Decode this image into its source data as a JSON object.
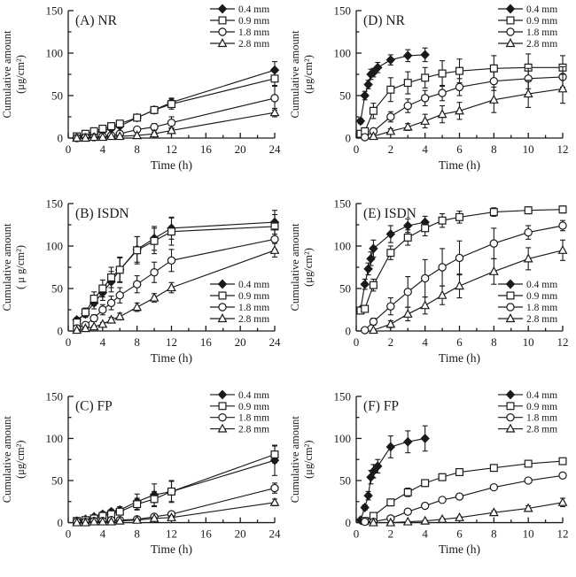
{
  "page": {
    "background": "#ffffff"
  },
  "colors": {
    "ink": "#1a1a1a",
    "marker_open_fill": "#ffffff"
  },
  "legend": {
    "entries": [
      {
        "label": "0.4 mm",
        "marker": "diamond",
        "filled": true
      },
      {
        "label": "0.9 mm",
        "marker": "square",
        "filled": false
      },
      {
        "label": "1.8 mm",
        "marker": "circle",
        "filled": false
      },
      {
        "label": "2.8 mm",
        "marker": "triangle",
        "filled": false
      }
    ]
  },
  "chart_data": [
    {
      "id": "A",
      "type": "line",
      "title": "(A) NR",
      "xlabel": "Time (h)",
      "ylabel": [
        "Cumulative amount",
        "(μg/cm²)"
      ],
      "xlim": [
        0,
        24
      ],
      "ylim": [
        0,
        150
      ],
      "xticks": [
        0,
        4,
        8,
        12,
        16,
        20,
        24
      ],
      "yticks": [
        0,
        50,
        100,
        150
      ],
      "grid": false,
      "legend_pos": "upper-right",
      "series": [
        {
          "name": "0.4 mm",
          "marker": "diamond",
          "filled": true,
          "x": [
            1,
            2,
            3,
            4,
            5,
            6,
            8,
            10,
            12,
            24
          ],
          "y": [
            1,
            2,
            5,
            8,
            11,
            14,
            24,
            33,
            42,
            80
          ],
          "e": [
            0,
            0,
            1,
            1,
            2,
            2,
            3,
            4,
            5,
            10
          ]
        },
        {
          "name": "0.9 mm",
          "marker": "square",
          "filled": false,
          "x": [
            1,
            2,
            3,
            4,
            5,
            6,
            8,
            10,
            12,
            24
          ],
          "y": [
            2,
            5,
            8,
            11,
            14,
            17,
            24,
            33,
            40,
            70
          ],
          "e": [
            1,
            1,
            2,
            2,
            2,
            3,
            3,
            4,
            6,
            8
          ]
        },
        {
          "name": "1.8 mm",
          "marker": "circle",
          "filled": false,
          "x": [
            1,
            2,
            3,
            4,
            5,
            6,
            8,
            10,
            12,
            24
          ],
          "y": [
            0,
            1,
            1,
            2,
            3,
            5,
            10,
            13,
            18,
            47
          ],
          "e": [
            0,
            0,
            0,
            1,
            1,
            2,
            3,
            4,
            7,
            14
          ]
        },
        {
          "name": "2.8 mm",
          "marker": "triangle",
          "filled": false,
          "x": [
            1,
            2,
            3,
            4,
            5,
            6,
            8,
            10,
            12,
            24
          ],
          "y": [
            0,
            0,
            1,
            1,
            2,
            2,
            3,
            5,
            9,
            30
          ],
          "e": [
            0,
            0,
            0,
            0,
            0,
            1,
            1,
            2,
            3,
            5
          ]
        }
      ]
    },
    {
      "id": "D",
      "type": "line",
      "title": "(D) NR",
      "xlabel": "Time (h)",
      "ylabel": [
        "Cumulative amount",
        "(μg/cm²)"
      ],
      "xlim": [
        0,
        12
      ],
      "ylim": [
        0,
        150
      ],
      "xticks": [
        0,
        2,
        4,
        6,
        8,
        10,
        12
      ],
      "yticks": [
        0,
        50,
        100,
        150
      ],
      "grid": false,
      "legend_pos": "upper-right",
      "series": [
        {
          "name": "0.4 mm",
          "marker": "diamond",
          "filled": true,
          "x": [
            0.25,
            0.5,
            0.7,
            0.85,
            1,
            1.25,
            2,
            3,
            4
          ],
          "y": [
            20,
            50,
            63,
            75,
            77,
            83,
            92,
            97,
            98
          ],
          "e": [
            3,
            5,
            5,
            6,
            5,
            6,
            6,
            7,
            8
          ]
        },
        {
          "name": "0.9 mm",
          "marker": "square",
          "filled": false,
          "x": [
            0.25,
            0.5,
            1,
            2,
            3,
            4,
            5,
            6,
            8,
            10,
            12
          ],
          "y": [
            5,
            8,
            32,
            57,
            65,
            71,
            76,
            79,
            82,
            83,
            83
          ],
          "e": [
            2,
            3,
            9,
            14,
            13,
            12,
            15,
            14,
            15,
            16,
            14
          ]
        },
        {
          "name": "1.8 mm",
          "marker": "circle",
          "filled": false,
          "x": [
            0.5,
            1,
            2,
            3,
            4,
            5,
            6,
            8,
            10,
            12
          ],
          "y": [
            1,
            8,
            25,
            38,
            47,
            53,
            60,
            67,
            70,
            72
          ],
          "e": [
            0,
            3,
            6,
            8,
            9,
            9,
            10,
            11,
            12,
            12
          ]
        },
        {
          "name": "2.8 mm",
          "marker": "triangle",
          "filled": false,
          "x": [
            1,
            2,
            3,
            4,
            5,
            6,
            8,
            10,
            12
          ],
          "y": [
            2,
            8,
            13,
            20,
            28,
            32,
            45,
            52,
            58
          ],
          "e": [
            1,
            3,
            4,
            8,
            10,
            10,
            15,
            16,
            17
          ]
        }
      ]
    },
    {
      "id": "B",
      "type": "line",
      "title": "(B) ISDN",
      "xlabel": "Time (h)",
      "ylabel": [
        "Cumulative amount",
        "( μ g/cm²)"
      ],
      "xlim": [
        0,
        24
      ],
      "ylim": [
        0,
        150
      ],
      "xticks": [
        0,
        4,
        8,
        12,
        16,
        20,
        24
      ],
      "yticks": [
        0,
        50,
        100,
        150
      ],
      "grid": false,
      "legend_pos": "middle-right",
      "series": [
        {
          "name": "0.4 mm",
          "marker": "diamond",
          "filled": true,
          "x": [
            1,
            2,
            3,
            4,
            5,
            6,
            8,
            10,
            12,
            24
          ],
          "y": [
            13,
            20,
            33,
            45,
            58,
            72,
            96,
            109,
            121,
            128
          ],
          "e": [
            3,
            4,
            7,
            9,
            12,
            15,
            15,
            14,
            13,
            14
          ]
        },
        {
          "name": "0.9 mm",
          "marker": "square",
          "filled": false,
          "x": [
            1,
            2,
            3,
            4,
            5,
            6,
            8,
            10,
            12,
            24
          ],
          "y": [
            10,
            22,
            38,
            50,
            63,
            72,
            95,
            106,
            117,
            123
          ],
          "e": [
            3,
            5,
            8,
            10,
            12,
            14,
            16,
            15,
            16,
            14
          ]
        },
        {
          "name": "1.8 mm",
          "marker": "circle",
          "filled": false,
          "x": [
            1,
            2,
            3,
            4,
            5,
            6,
            8,
            10,
            12,
            24
          ],
          "y": [
            3,
            7,
            15,
            25,
            33,
            42,
            55,
            69,
            83,
            108
          ],
          "e": [
            1,
            2,
            4,
            6,
            8,
            9,
            10,
            12,
            13,
            12
          ]
        },
        {
          "name": "2.8 mm",
          "marker": "triangle",
          "filled": false,
          "x": [
            1,
            2,
            3,
            4,
            5,
            6,
            8,
            10,
            12,
            24
          ],
          "y": [
            1,
            3,
            5,
            8,
            13,
            17,
            28,
            39,
            51,
            95
          ],
          "e": [
            0,
            1,
            1,
            2,
            3,
            4,
            5,
            5,
            6,
            8
          ]
        }
      ]
    },
    {
      "id": "E",
      "type": "line",
      "title": "(E) ISDN",
      "xlabel": "Time (h)",
      "ylabel": [
        "Cumulative amount",
        "(μg/cm²)"
      ],
      "xlim": [
        0,
        12
      ],
      "ylim": [
        0,
        150
      ],
      "xticks": [
        0,
        2,
        4,
        6,
        8,
        10,
        12
      ],
      "yticks": [
        0,
        50,
        100,
        150
      ],
      "grid": false,
      "legend_pos": "middle-right",
      "series": [
        {
          "name": "0.4 mm",
          "marker": "diamond",
          "filled": true,
          "x": [
            0.25,
            0.5,
            0.7,
            0.85,
            1,
            2,
            3,
            4
          ],
          "y": [
            25,
            55,
            73,
            85,
            97,
            114,
            124,
            128
          ],
          "e": [
            3,
            6,
            7,
            8,
            10,
            10,
            8,
            7
          ]
        },
        {
          "name": "0.9 mm",
          "marker": "square",
          "filled": false,
          "x": [
            0.25,
            0.5,
            1,
            2,
            3,
            4,
            5,
            6,
            8,
            10,
            12
          ],
          "y": [
            24,
            26,
            54,
            92,
            110,
            121,
            130,
            134,
            140,
            142,
            143
          ],
          "e": [
            3,
            4,
            7,
            8,
            9,
            9,
            8,
            7,
            5,
            4,
            4
          ]
        },
        {
          "name": "1.8 mm",
          "marker": "circle",
          "filled": false,
          "x": [
            0.5,
            1,
            2,
            3,
            4,
            5,
            6,
            8,
            10,
            12
          ],
          "y": [
            1,
            11,
            29,
            46,
            62,
            75,
            86,
            103,
            116,
            124
          ],
          "e": [
            0,
            4,
            10,
            18,
            22,
            22,
            20,
            18,
            8,
            6
          ]
        },
        {
          "name": "2.8 mm",
          "marker": "triangle",
          "filled": false,
          "x": [
            1,
            2,
            3,
            4,
            5,
            6,
            8,
            10,
            12
          ],
          "y": [
            1,
            8,
            20,
            30,
            42,
            53,
            70,
            85,
            95
          ],
          "e": [
            0,
            4,
            8,
            10,
            11,
            14,
            15,
            13,
            12
          ]
        }
      ]
    },
    {
      "id": "C",
      "type": "line",
      "title": "(C) FP",
      "xlabel": "Time (h)",
      "ylabel": [
        "Cumulative amount",
        "(μg/cm²)"
      ],
      "xlim": [
        0,
        24
      ],
      "ylim": [
        0,
        150
      ],
      "xticks": [
        0,
        4,
        8,
        12,
        16,
        20,
        24
      ],
      "yticks": [
        0,
        50,
        100,
        150
      ],
      "grid": false,
      "legend_pos": "upper-right",
      "series": [
        {
          "name": "0.4 mm",
          "marker": "diamond",
          "filled": true,
          "x": [
            1,
            2,
            3,
            4,
            5,
            6,
            8,
            10,
            12,
            24
          ],
          "y": [
            2,
            4,
            7,
            10,
            13,
            15,
            25,
            33,
            37,
            74
          ],
          "e": [
            1,
            1,
            2,
            3,
            3,
            4,
            9,
            13,
            12,
            18
          ]
        },
        {
          "name": "0.9 mm",
          "marker": "square",
          "filled": false,
          "x": [
            1,
            2,
            3,
            4,
            5,
            6,
            8,
            10,
            12,
            24
          ],
          "y": [
            2,
            3,
            5,
            8,
            10,
            13,
            22,
            28,
            37,
            81
          ],
          "e": [
            1,
            1,
            2,
            2,
            3,
            4,
            7,
            9,
            13,
            10
          ]
        },
        {
          "name": "1.8 mm",
          "marker": "circle",
          "filled": false,
          "x": [
            1,
            2,
            3,
            4,
            5,
            6,
            8,
            10,
            12,
            24
          ],
          "y": [
            1,
            1,
            2,
            2,
            3,
            3,
            4,
            7,
            10,
            41
          ],
          "e": [
            0,
            0,
            0,
            1,
            1,
            1,
            1,
            2,
            3,
            6
          ]
        },
        {
          "name": "2.8 mm",
          "marker": "triangle",
          "filled": false,
          "x": [
            1,
            2,
            3,
            4,
            5,
            6,
            8,
            10,
            12,
            24
          ],
          "y": [
            0,
            0,
            1,
            1,
            1,
            2,
            3,
            5,
            6,
            24
          ],
          "e": [
            0,
            0,
            0,
            0,
            0,
            1,
            1,
            1,
            2,
            4
          ]
        }
      ]
    },
    {
      "id": "F",
      "type": "line",
      "title": "(F) FP",
      "xlabel": "Time (h)",
      "ylabel": [
        "Cumulative amount",
        "(μg/cm²)"
      ],
      "xlim": [
        0,
        12
      ],
      "ylim": [
        0,
        150
      ],
      "xticks": [
        0,
        2,
        4,
        6,
        8,
        10,
        12
      ],
      "yticks": [
        0,
        50,
        100,
        150
      ],
      "grid": false,
      "legend_pos": "upper-right",
      "series": [
        {
          "name": "0.4 mm",
          "marker": "diamond",
          "filled": true,
          "x": [
            0.25,
            0.5,
            0.7,
            0.85,
            1,
            1.25,
            2,
            3,
            4
          ],
          "y": [
            3,
            18,
            32,
            54,
            61,
            67,
            90,
            96,
            100
          ],
          "e": [
            1,
            3,
            5,
            8,
            8,
            8,
            13,
            13,
            15
          ]
        },
        {
          "name": "0.9 mm",
          "marker": "square",
          "filled": false,
          "x": [
            0.5,
            1,
            2,
            3,
            4,
            5,
            6,
            8,
            10,
            12
          ],
          "y": [
            2,
            8,
            24,
            36,
            47,
            54,
            60,
            65,
            70,
            73
          ],
          "e": [
            1,
            2,
            4,
            5,
            4,
            4,
            3,
            3,
            3,
            3
          ]
        },
        {
          "name": "1.8 mm",
          "marker": "circle",
          "filled": false,
          "x": [
            0.5,
            1,
            2,
            3,
            4,
            5,
            6,
            8,
            10,
            12
          ],
          "y": [
            1,
            1,
            5,
            13,
            20,
            27,
            31,
            42,
            50,
            56
          ],
          "e": [
            0,
            0,
            1,
            2,
            3,
            3,
            3,
            3,
            3,
            3
          ]
        },
        {
          "name": "2.8 mm",
          "marker": "triangle",
          "filled": false,
          "x": [
            1,
            2,
            3,
            4,
            5,
            6,
            8,
            10,
            12
          ],
          "y": [
            0,
            0,
            1,
            2,
            4,
            6,
            12,
            17,
            24
          ],
          "e": [
            0,
            0,
            0,
            1,
            1,
            1,
            2,
            3,
            5
          ]
        }
      ]
    }
  ]
}
